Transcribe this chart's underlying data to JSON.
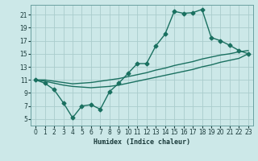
{
  "xlabel": "Humidex (Indice chaleur)",
  "bg_color": "#cce8e8",
  "line_color": "#1a7060",
  "grid_color": "#aacccc",
  "xlim": [
    -0.5,
    23.5
  ],
  "ylim": [
    4.0,
    22.5
  ],
  "xticks": [
    0,
    1,
    2,
    3,
    4,
    5,
    6,
    7,
    8,
    9,
    10,
    11,
    12,
    13,
    14,
    15,
    16,
    17,
    18,
    19,
    20,
    21,
    22,
    23
  ],
  "yticks": [
    5,
    7,
    9,
    11,
    13,
    15,
    17,
    19,
    21
  ],
  "curve1_x": [
    0,
    1,
    2,
    3,
    4,
    5,
    6,
    7,
    8,
    9,
    10,
    11,
    12,
    13,
    14,
    15,
    16,
    17,
    18,
    19,
    20,
    21,
    22,
    23
  ],
  "curve1_y": [
    11,
    10.5,
    9.5,
    7.5,
    5.2,
    7.0,
    7.2,
    6.5,
    9.2,
    10.5,
    12.0,
    13.5,
    13.5,
    16.2,
    18.0,
    21.5,
    21.2,
    21.3,
    21.8,
    17.5,
    17.0,
    16.3,
    15.5,
    15.0
  ],
  "curve2_x": [
    0,
    1,
    2,
    3,
    4,
    5,
    6,
    7,
    8,
    9,
    10,
    11,
    12,
    13,
    14,
    15,
    16,
    17,
    18,
    19,
    20,
    21,
    22,
    23
  ],
  "curve2_y": [
    11.0,
    11.0,
    10.8,
    10.6,
    10.4,
    10.5,
    10.6,
    10.8,
    11.0,
    11.2,
    11.5,
    11.8,
    12.1,
    12.5,
    12.8,
    13.2,
    13.5,
    13.8,
    14.2,
    14.5,
    14.8,
    15.0,
    15.3,
    15.5
  ],
  "curve3_x": [
    0,
    1,
    2,
    3,
    4,
    5,
    6,
    7,
    8,
    9,
    10,
    11,
    12,
    13,
    14,
    15,
    16,
    17,
    18,
    19,
    20,
    21,
    22,
    23
  ],
  "curve3_y": [
    11.0,
    10.8,
    10.5,
    10.2,
    10.0,
    9.9,
    9.8,
    9.9,
    10.0,
    10.2,
    10.5,
    10.8,
    11.1,
    11.4,
    11.7,
    12.0,
    12.3,
    12.6,
    13.0,
    13.3,
    13.7,
    14.0,
    14.3,
    15.0
  ],
  "lw": 1.0,
  "ms": 2.5
}
